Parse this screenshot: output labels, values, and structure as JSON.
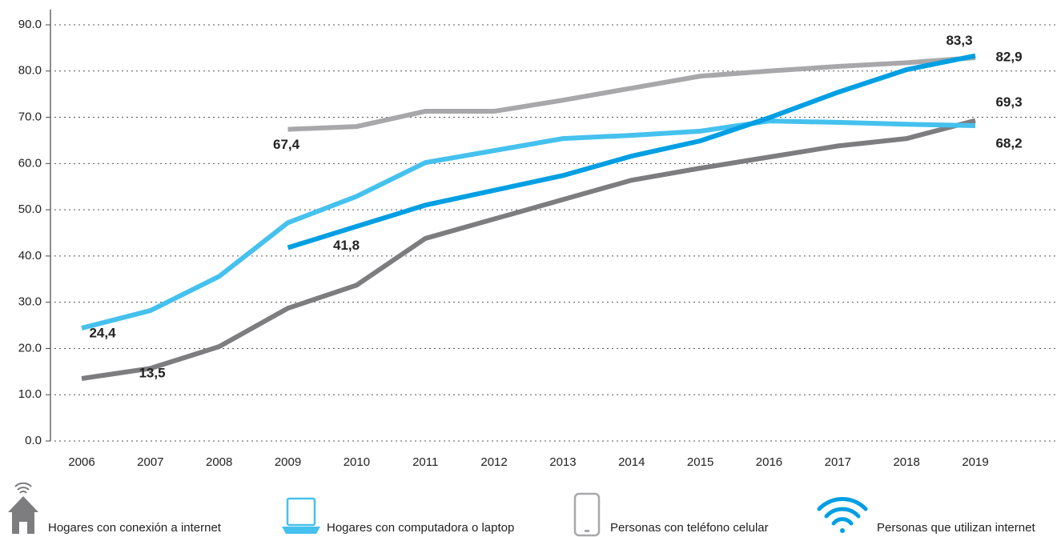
{
  "chart_data": {
    "type": "line",
    "categories": [
      "2006",
      "2007",
      "2008",
      "2009",
      "2010",
      "2011",
      "2012",
      "2013",
      "2014",
      "2015",
      "2016",
      "2017",
      "2018",
      "2019"
    ],
    "ylim": [
      0,
      90
    ],
    "yticks": [
      {
        "value": 0,
        "label": "0.0"
      },
      {
        "value": 10,
        "label": "10.0"
      },
      {
        "value": 20,
        "label": "20.0"
      },
      {
        "value": 30,
        "label": "30.0"
      },
      {
        "value": 40,
        "label": "40.0"
      },
      {
        "value": 50,
        "label": "50.0"
      },
      {
        "value": 60,
        "label": "60.0"
      },
      {
        "value": 70,
        "label": "70.0"
      },
      {
        "value": 80,
        "label": "80.0"
      },
      {
        "value": 90,
        "label": "90.0"
      }
    ],
    "grid": true,
    "legend": "bottom",
    "series": [
      {
        "name": "Hogares con conexión a internet",
        "color": "#7d7d80",
        "values": [
          13.5,
          15.7,
          20.4,
          28.7,
          33.7,
          43.8,
          48.0,
          52.2,
          56.4,
          59.0,
          61.4,
          63.8,
          65.4,
          69.3
        ],
        "value_labels": [
          "13,5",
          null,
          null,
          null,
          null,
          null,
          null,
          null,
          null,
          null,
          null,
          null,
          null,
          "69,3"
        ]
      },
      {
        "name": "Hogares con computadora o laptop",
        "color": "#45c1ee",
        "values": [
          24.4,
          28.2,
          35.6,
          47.2,
          52.9,
          60.2,
          62.8,
          65.4,
          66.1,
          67.0,
          69.2,
          68.9,
          68.5,
          68.2
        ],
        "value_labels": [
          "24,4",
          null,
          null,
          null,
          null,
          null,
          null,
          null,
          null,
          null,
          null,
          null,
          null,
          "68,2"
        ]
      },
      {
        "name": "Personas con teléfono celular",
        "color": "#a8a8ab",
        "values": [
          null,
          null,
          null,
          67.4,
          68.0,
          71.3,
          71.3,
          73.7,
          76.3,
          78.9,
          80.0,
          81.0,
          81.8,
          82.9
        ],
        "value_labels": [
          null,
          null,
          null,
          "67,4",
          null,
          null,
          null,
          null,
          null,
          null,
          null,
          null,
          null,
          "82,9"
        ]
      },
      {
        "name": "Personas que utilizan internet",
        "color": "#009fe3",
        "values": [
          null,
          null,
          null,
          41.8,
          46.4,
          51.0,
          54.2,
          57.4,
          61.6,
          64.9,
          69.9,
          75.4,
          80.3,
          83.3
        ],
        "value_labels": [
          null,
          null,
          null,
          "41,8",
          null,
          null,
          null,
          null,
          null,
          null,
          null,
          null,
          null,
          "83,3"
        ]
      }
    ]
  }
}
